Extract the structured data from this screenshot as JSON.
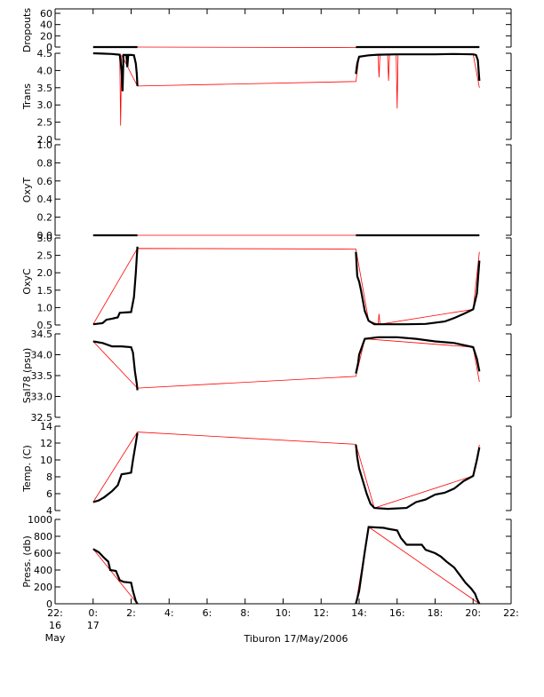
{
  "chart_data": {
    "type": "line",
    "caption": "Tiburon 17/May/2006",
    "x_axis": {
      "unit": "hours since 0:00 17 May 2006",
      "range": [
        -2,
        22
      ],
      "ticks": [
        {
          "value": -2,
          "line1": "22:",
          "line2": "16",
          "line3": "May"
        },
        {
          "value": 0,
          "line1": "0:",
          "line2": "17",
          "line3": ""
        },
        {
          "value": 2,
          "line1": "2:",
          "line2": "",
          "line3": ""
        },
        {
          "value": 4,
          "line1": "4:",
          "line2": "",
          "line3": ""
        },
        {
          "value": 6,
          "line1": "6:",
          "line2": "",
          "line3": ""
        },
        {
          "value": 8,
          "line1": "8:",
          "line2": "",
          "line3": ""
        },
        {
          "value": 10,
          "line1": "10:",
          "line2": "",
          "line3": ""
        },
        {
          "value": 12,
          "line1": "12:",
          "line2": "",
          "line3": ""
        },
        {
          "value": 14,
          "line1": "14:",
          "line2": "",
          "line3": ""
        },
        {
          "value": 16,
          "line1": "16:",
          "line2": "",
          "line3": ""
        },
        {
          "value": 18,
          "line1": "18:",
          "line2": "",
          "line3": ""
        },
        {
          "value": 20,
          "line1": "20:",
          "line2": "",
          "line3": ""
        },
        {
          "value": 22,
          "line1": "22:",
          "line2": "",
          "line3": ""
        }
      ]
    },
    "series_colors": {
      "samples": "#000000",
      "connecting_line": "#ff0000"
    },
    "panels": [
      {
        "id": "dropouts",
        "ylabel": "Dropouts",
        "ylim": [
          0,
          60
        ],
        "yticks": [
          0,
          20,
          40,
          60
        ],
        "yticklabels": [
          "0",
          "20",
          "40",
          "60"
        ],
        "black": [
          [
            [
              0.0,
              0
            ],
            [
              2.33,
              0
            ]
          ],
          [
            [
              13.83,
              0
            ],
            [
              20.33,
              0
            ]
          ]
        ],
        "red": [
          [
            0.0,
            0
          ],
          [
            2.33,
            0
          ],
          [
            13.83,
            -1
          ],
          [
            20.33,
            0
          ]
        ]
      },
      {
        "id": "trans",
        "ylabel": "Trans",
        "ylim": [
          2.0,
          4.5
        ],
        "yticks": [
          2.0,
          2.5,
          3.0,
          3.5,
          4.0,
          4.5
        ],
        "yticklabels": [
          "2.0",
          "2.5",
          "3.0",
          "3.5",
          "4.0",
          "4.5"
        ],
        "black": [
          [
            [
              0.0,
              4.5
            ],
            [
              0.5,
              4.49
            ],
            [
              1.0,
              4.48
            ],
            [
              1.4,
              4.46
            ],
            [
              1.5,
              4.0
            ],
            [
              1.55,
              3.4
            ],
            [
              1.6,
              4.45
            ],
            [
              1.75,
              4.45
            ],
            [
              1.8,
              4.1
            ],
            [
              1.85,
              4.45
            ],
            [
              2.0,
              4.45
            ],
            [
              2.15,
              4.44
            ],
            [
              2.25,
              4.2
            ],
            [
              2.3,
              3.9
            ],
            [
              2.33,
              3.55
            ]
          ],
          [
            [
              13.83,
              3.9
            ],
            [
              13.9,
              4.2
            ],
            [
              14.0,
              4.4
            ],
            [
              14.5,
              4.44
            ],
            [
              15.0,
              4.46
            ],
            [
              16.0,
              4.47
            ],
            [
              17.0,
              4.47
            ],
            [
              18.0,
              4.47
            ],
            [
              19.0,
              4.48
            ],
            [
              20.0,
              4.47
            ],
            [
              20.15,
              4.45
            ],
            [
              20.25,
              4.3
            ],
            [
              20.33,
              3.7
            ]
          ]
        ],
        "red": [
          [
            0.0,
            4.5
          ],
          [
            1.4,
            4.46
          ],
          [
            1.45,
            2.4
          ],
          [
            1.5,
            4.45
          ],
          [
            2.33,
            3.55
          ],
          [
            13.83,
            3.68
          ],
          [
            14.0,
            4.4
          ],
          [
            15.0,
            4.45
          ],
          [
            15.05,
            3.8
          ],
          [
            15.1,
            4.45
          ],
          [
            15.5,
            4.46
          ],
          [
            15.55,
            3.7
          ],
          [
            15.6,
            4.46
          ],
          [
            15.95,
            4.46
          ],
          [
            16.0,
            2.9
          ],
          [
            16.05,
            4.46
          ],
          [
            20.0,
            4.47
          ],
          [
            20.33,
            3.5
          ]
        ]
      },
      {
        "id": "oxyt",
        "ylabel": "OxyT",
        "ylim": [
          0.0,
          1.0
        ],
        "yticks": [
          0.0,
          0.2,
          0.4,
          0.6,
          0.8,
          1.0
        ],
        "yticklabels": [
          "0.0",
          "0.2",
          "0.4",
          "0.6",
          "0.8",
          "1.0"
        ],
        "black": [
          [
            [
              0.0,
              0.0
            ],
            [
              2.33,
              0.0
            ]
          ],
          [
            [
              13.83,
              0.0
            ],
            [
              20.33,
              0.0
            ]
          ]
        ],
        "red": [
          [
            0.0,
            0.0
          ],
          [
            20.33,
            0.0
          ]
        ]
      },
      {
        "id": "oxyc",
        "ylabel": "OxyC",
        "ylim": [
          0.5,
          3.0
        ],
        "yticks": [
          0.5,
          1.0,
          1.5,
          2.0,
          2.5,
          3.0
        ],
        "yticklabels": [
          "0.5",
          "1.0",
          "1.5",
          "2.0",
          "2.5",
          "3.0"
        ],
        "black": [
          [
            [
              0.0,
              0.52
            ],
            [
              0.5,
              0.55
            ],
            [
              0.7,
              0.65
            ],
            [
              1.0,
              0.68
            ],
            [
              1.3,
              0.72
            ],
            [
              1.4,
              0.85
            ],
            [
              1.7,
              0.86
            ],
            [
              2.0,
              0.87
            ],
            [
              2.15,
              1.3
            ],
            [
              2.25,
              2.0
            ],
            [
              2.33,
              2.75
            ]
          ],
          [
            [
              13.83,
              2.6
            ],
            [
              13.9,
              1.9
            ],
            [
              14.0,
              1.75
            ],
            [
              14.1,
              1.5
            ],
            [
              14.3,
              0.9
            ],
            [
              14.5,
              0.62
            ],
            [
              14.8,
              0.52
            ],
            [
              15.5,
              0.52
            ],
            [
              16.5,
              0.52
            ],
            [
              17.5,
              0.53
            ],
            [
              18.5,
              0.6
            ],
            [
              19.0,
              0.7
            ],
            [
              19.5,
              0.82
            ],
            [
              20.0,
              0.95
            ],
            [
              20.2,
              1.4
            ],
            [
              20.33,
              2.35
            ]
          ]
        ],
        "red": [
          [
            0.0,
            0.52
          ],
          [
            2.33,
            2.7
          ],
          [
            13.83,
            2.68
          ],
          [
            14.5,
            0.62
          ],
          [
            15.0,
            0.52
          ],
          [
            15.05,
            0.82
          ],
          [
            15.1,
            0.52
          ],
          [
            20.0,
            0.95
          ],
          [
            20.33,
            2.6
          ]
        ]
      },
      {
        "id": "sal78",
        "ylabel": "Sal78 (psu)",
        "ylim": [
          32.5,
          34.5
        ],
        "yticks": [
          32.5,
          33.0,
          33.5,
          34.0,
          34.5
        ],
        "yticklabels": [
          "32.5",
          "33.0",
          "33.5",
          "34.0",
          "34.5"
        ],
        "black": [
          [
            [
              0.0,
              34.32
            ],
            [
              0.5,
              34.28
            ],
            [
              1.0,
              34.2
            ],
            [
              1.5,
              34.2
            ],
            [
              2.0,
              34.18
            ],
            [
              2.1,
              34.05
            ],
            [
              2.2,
              33.6
            ],
            [
              2.3,
              33.3
            ],
            [
              2.33,
              33.15
            ]
          ],
          [
            [
              13.83,
              33.55
            ],
            [
              13.95,
              33.8
            ],
            [
              14.0,
              34.0
            ],
            [
              14.3,
              34.38
            ],
            [
              15.0,
              34.42
            ],
            [
              16.0,
              34.42
            ],
            [
              17.0,
              34.38
            ],
            [
              18.0,
              34.32
            ],
            [
              19.0,
              34.28
            ],
            [
              20.0,
              34.18
            ],
            [
              20.2,
              33.9
            ],
            [
              20.33,
              33.6
            ]
          ]
        ],
        "red": [
          [
            0.0,
            34.32
          ],
          [
            2.33,
            33.2
          ],
          [
            13.83,
            33.48
          ],
          [
            14.3,
            34.38
          ],
          [
            20.0,
            34.18
          ],
          [
            20.33,
            33.35
          ]
        ]
      },
      {
        "id": "temp",
        "ylabel": "Temp. (C)",
        "ylim": [
          4,
          14
        ],
        "yticks": [
          4,
          6,
          8,
          10,
          12,
          14
        ],
        "yticklabels": [
          "4",
          "6",
          "8",
          "10",
          "12",
          "14"
        ],
        "black": [
          [
            [
              0.0,
              5.0
            ],
            [
              0.3,
              5.2
            ],
            [
              0.6,
              5.6
            ],
            [
              1.0,
              6.3
            ],
            [
              1.3,
              7.0
            ],
            [
              1.5,
              8.3
            ],
            [
              1.8,
              8.4
            ],
            [
              2.0,
              8.5
            ],
            [
              2.1,
              10.0
            ],
            [
              2.25,
              12.0
            ],
            [
              2.33,
              13.2
            ]
          ],
          [
            [
              13.83,
              11.8
            ],
            [
              13.9,
              10.3
            ],
            [
              14.0,
              9.0
            ],
            [
              14.2,
              7.5
            ],
            [
              14.4,
              6.0
            ],
            [
              14.6,
              4.8
            ],
            [
              14.8,
              4.3
            ],
            [
              15.5,
              4.2
            ],
            [
              16.5,
              4.3
            ],
            [
              17.0,
              5.0
            ],
            [
              17.5,
              5.3
            ],
            [
              18.0,
              5.9
            ],
            [
              18.5,
              6.1
            ],
            [
              19.0,
              6.6
            ],
            [
              19.5,
              7.5
            ],
            [
              20.0,
              8.1
            ],
            [
              20.2,
              10.0
            ],
            [
              20.33,
              11.5
            ]
          ]
        ],
        "red": [
          [
            0.0,
            5.0
          ],
          [
            2.33,
            13.3
          ],
          [
            13.83,
            11.85
          ],
          [
            14.8,
            4.3
          ],
          [
            20.0,
            8.1
          ],
          [
            20.33,
            11.8
          ]
        ]
      },
      {
        "id": "press",
        "ylabel": "Press. (db)",
        "ylim": [
          0,
          1000
        ],
        "yticks": [
          0,
          200,
          400,
          600,
          800,
          1000
        ],
        "yticklabels": [
          "0",
          "200",
          "400",
          "600",
          "800",
          "1000"
        ],
        "black": [
          [
            [
              0.0,
              650
            ],
            [
              0.3,
              610
            ],
            [
              0.6,
              540
            ],
            [
              0.8,
              500
            ],
            [
              0.9,
              400
            ],
            [
              1.2,
              390
            ],
            [
              1.4,
              280
            ],
            [
              1.6,
              260
            ],
            [
              2.0,
              250
            ],
            [
              2.1,
              150
            ],
            [
              2.25,
              30
            ],
            [
              2.33,
              0
            ]
          ],
          [
            [
              13.83,
              0
            ],
            [
              14.0,
              150
            ],
            [
              14.3,
              620
            ],
            [
              14.5,
              910
            ],
            [
              15.3,
              900
            ],
            [
              15.5,
              890
            ],
            [
              16.0,
              870
            ],
            [
              16.2,
              780
            ],
            [
              16.5,
              700
            ],
            [
              17.3,
              700
            ],
            [
              17.5,
              640
            ],
            [
              18.0,
              600
            ],
            [
              18.3,
              560
            ],
            [
              18.6,
              500
            ],
            [
              19.0,
              430
            ],
            [
              19.3,
              340
            ],
            [
              19.6,
              250
            ],
            [
              19.9,
              180
            ],
            [
              20.1,
              120
            ],
            [
              20.2,
              60
            ],
            [
              20.33,
              0
            ]
          ]
        ],
        "red": [
          [
            0.0,
            650
          ],
          [
            2.33,
            0
          ],
          [
            13.83,
            0
          ],
          [
            14.5,
            910
          ],
          [
            20.33,
            0
          ]
        ]
      }
    ]
  }
}
